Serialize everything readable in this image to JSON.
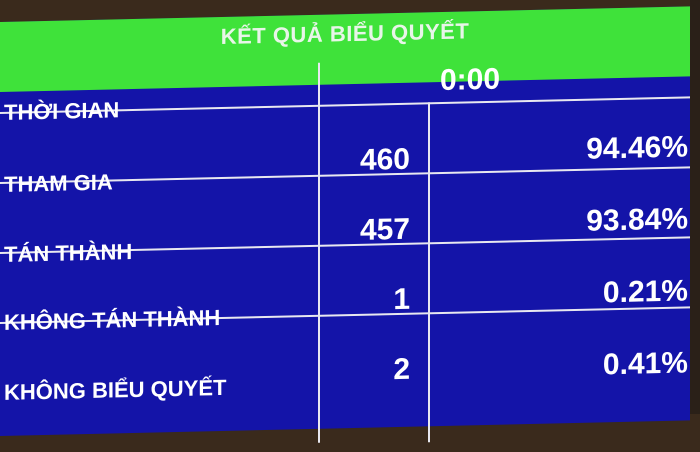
{
  "title": "KẾT QUẢ BIỂU QUYẾT",
  "colors": {
    "header": "#3fe23a",
    "table": "#1414a8",
    "text": "#ffffff"
  },
  "rows": [
    {
      "label": "THỜI GIAN",
      "value": "0:00"
    },
    {
      "label": "THAM GIA",
      "count": "460",
      "percent": "94.46%"
    },
    {
      "label": "TÁN THÀNH",
      "count": "457",
      "percent": "93.84%"
    },
    {
      "label": "KHÔNG TÁN THÀNH",
      "count": "1",
      "percent": "0.21%"
    },
    {
      "label": "KHÔNG BIỂU QUYẾT",
      "count": "2",
      "percent": "0.41%"
    }
  ]
}
